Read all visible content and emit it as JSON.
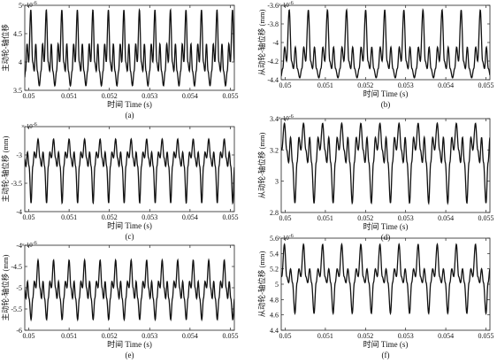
{
  "figure": {
    "panels_order": [
      "a",
      "b",
      "c",
      "d",
      "e",
      "f"
    ]
  },
  "chart_data": [
    {
      "panel": "a",
      "caption": "(a)",
      "type": "line",
      "xlabel": "时间 Time (s)",
      "ylabel": "主动轮-轴位移",
      "yexp": "× 10",
      "yexp_power": "-6",
      "xlim": [
        0.0499,
        0.0551
      ],
      "ylim": [
        3.5,
        5.0
      ],
      "xticks": [
        0.05,
        0.051,
        0.052,
        0.053,
        0.054,
        0.055
      ],
      "xtick_labels": [
        "0.05",
        "0.051",
        "0.052",
        "0.053",
        "0.054",
        "0.055"
      ],
      "yticks": [
        3.5,
        4.0,
        4.5,
        5.0
      ],
      "ytick_labels": [
        "3.5",
        "4",
        "4.5",
        "5"
      ],
      "period": 0.000385,
      "phase": 0.0,
      "waveform": {
        "mean": 4.0,
        "peak": 4.92,
        "trough": 3.58,
        "ripple_high": 4.32,
        "ripple_low": 3.84
      },
      "series": [
        {
          "values_description_free": true
        }
      ]
    },
    {
      "panel": "b",
      "caption": "(b)",
      "type": "line",
      "xlabel": "时间 Time (s)",
      "ylabel": "从动轮-轴位移 (mm)",
      "yexp": "× 10",
      "yexp_power": "-6",
      "xlim": [
        0.0499,
        0.0551
      ],
      "ylim": [
        -4.4,
        -3.6
      ],
      "xticks": [
        0.05,
        0.051,
        0.052,
        0.053,
        0.054,
        0.055
      ],
      "xtick_labels": [
        "0.05",
        "0.051",
        "0.052",
        "0.053",
        "0.054",
        "0.055"
      ],
      "yticks": [
        -4.4,
        -4.2,
        -4.0,
        -3.8,
        -3.6
      ],
      "ytick_labels": [
        "-4.4",
        "-4.2",
        "-4",
        "-3.8",
        "-3.6"
      ],
      "period": 0.000476,
      "phase": 0.00012,
      "waveform": {
        "mean": -4.2,
        "peak": -3.65,
        "trough": -4.38,
        "ripple_high": -4.05,
        "ripple_low": -4.28
      }
    },
    {
      "panel": "c",
      "caption": "(c)",
      "type": "line",
      "xlabel": "时间 Time (s)",
      "ylabel": "主动轮-轴位移 (mm)",
      "yexp": "× 10",
      "yexp_power": "-6",
      "xlim": [
        0.0499,
        0.0551
      ],
      "ylim": [
        -4.0,
        -2.5
      ],
      "xticks": [
        0.05,
        0.051,
        0.052,
        0.053,
        0.054,
        0.055
      ],
      "xtick_labels": [
        "0.05",
        "0.051",
        "0.052",
        "0.053",
        "0.054",
        "0.055"
      ],
      "yticks": [
        -4.0,
        -3.5,
        -3.0
      ],
      "ytick_labels": [
        "-4",
        "-3.5",
        "-3"
      ],
      "period": 0.000385,
      "phase": 0.00018,
      "waveform": {
        "mean": -3.05,
        "peak": -2.72,
        "trough": -3.85,
        "ripple_high": -2.95,
        "ripple_low": -3.2
      }
    },
    {
      "panel": "d",
      "caption": "(d)",
      "type": "line",
      "xlabel": "时间 Time (s)",
      "ylabel": "从动轮-轴位移 (mm)",
      "yexp": "× 10",
      "yexp_power": "-6",
      "xlim": [
        0.0499,
        0.0551
      ],
      "ylim": [
        2.8,
        3.4
      ],
      "xticks": [
        0.05,
        0.051,
        0.052,
        0.053,
        0.054,
        0.055
      ],
      "xtick_labels": [
        "0.05",
        "0.051",
        "0.052",
        "0.053",
        "0.054",
        "0.055"
      ],
      "yticks": [
        2.8,
        3.0,
        3.2,
        3.4
      ],
      "ytick_labels": [
        "2.8",
        "3",
        "3.2",
        "3.4"
      ],
      "period": 0.000476,
      "phase": 0.0,
      "waveform": {
        "mean": 3.2,
        "peak": 3.37,
        "trough": 2.86,
        "ripple_high": 3.28,
        "ripple_low": 3.12
      }
    },
    {
      "panel": "e",
      "caption": "(e)",
      "type": "line",
      "xlabel": "时间 Time (s)",
      "ylabel": "主动轮-轴位移 (mm)",
      "yexp": "× 10",
      "yexp_power": "-6",
      "xlim": [
        0.0499,
        0.0551
      ],
      "ylim": [
        -6.0,
        -4.0
      ],
      "xticks": [
        0.05,
        0.051,
        0.052,
        0.053,
        0.054,
        0.055
      ],
      "xtick_labels": [
        "0.05",
        "0.051",
        "0.052",
        "0.053",
        "0.054",
        "0.055"
      ],
      "yticks": [
        -6.0,
        -5.5,
        -5.0,
        -4.5,
        -4.0
      ],
      "ytick_labels": [
        "-6",
        "-5.5",
        "-5",
        "-4.5",
        "-4"
      ],
      "period": 0.000385,
      "phase": 0.00018,
      "waveform": {
        "mean": -5.0,
        "peak": -4.35,
        "trough": -5.75,
        "ripple_high": -4.85,
        "ripple_low": -5.25
      }
    },
    {
      "panel": "f",
      "caption": "(f)",
      "type": "line",
      "xlabel": "时间 Time (s)",
      "ylabel": "从动轮-轴位移 (mm)",
      "yexp": "× 10",
      "yexp_power": "-6",
      "xlim": [
        0.0499,
        0.0551
      ],
      "ylim": [
        4.4,
        5.6
      ],
      "xticks": [
        0.05,
        0.051,
        0.052,
        0.053,
        0.054,
        0.055
      ],
      "xtick_labels": [
        "0.05",
        "0.051",
        "0.052",
        "0.053",
        "0.054",
        "0.055"
      ],
      "yticks": [
        4.4,
        4.6,
        4.8,
        5.0,
        5.2,
        5.4,
        5.6
      ],
      "ytick_labels": [
        "4.4",
        "4.6",
        "4.8",
        "5",
        "5.2",
        "5.4",
        "5.6"
      ],
      "period": 0.000476,
      "phase": 0.0,
      "waveform": {
        "mean": 5.1,
        "peak": 5.52,
        "trough": 4.62,
        "ripple_high": 5.2,
        "ripple_low": 5.02
      }
    }
  ]
}
